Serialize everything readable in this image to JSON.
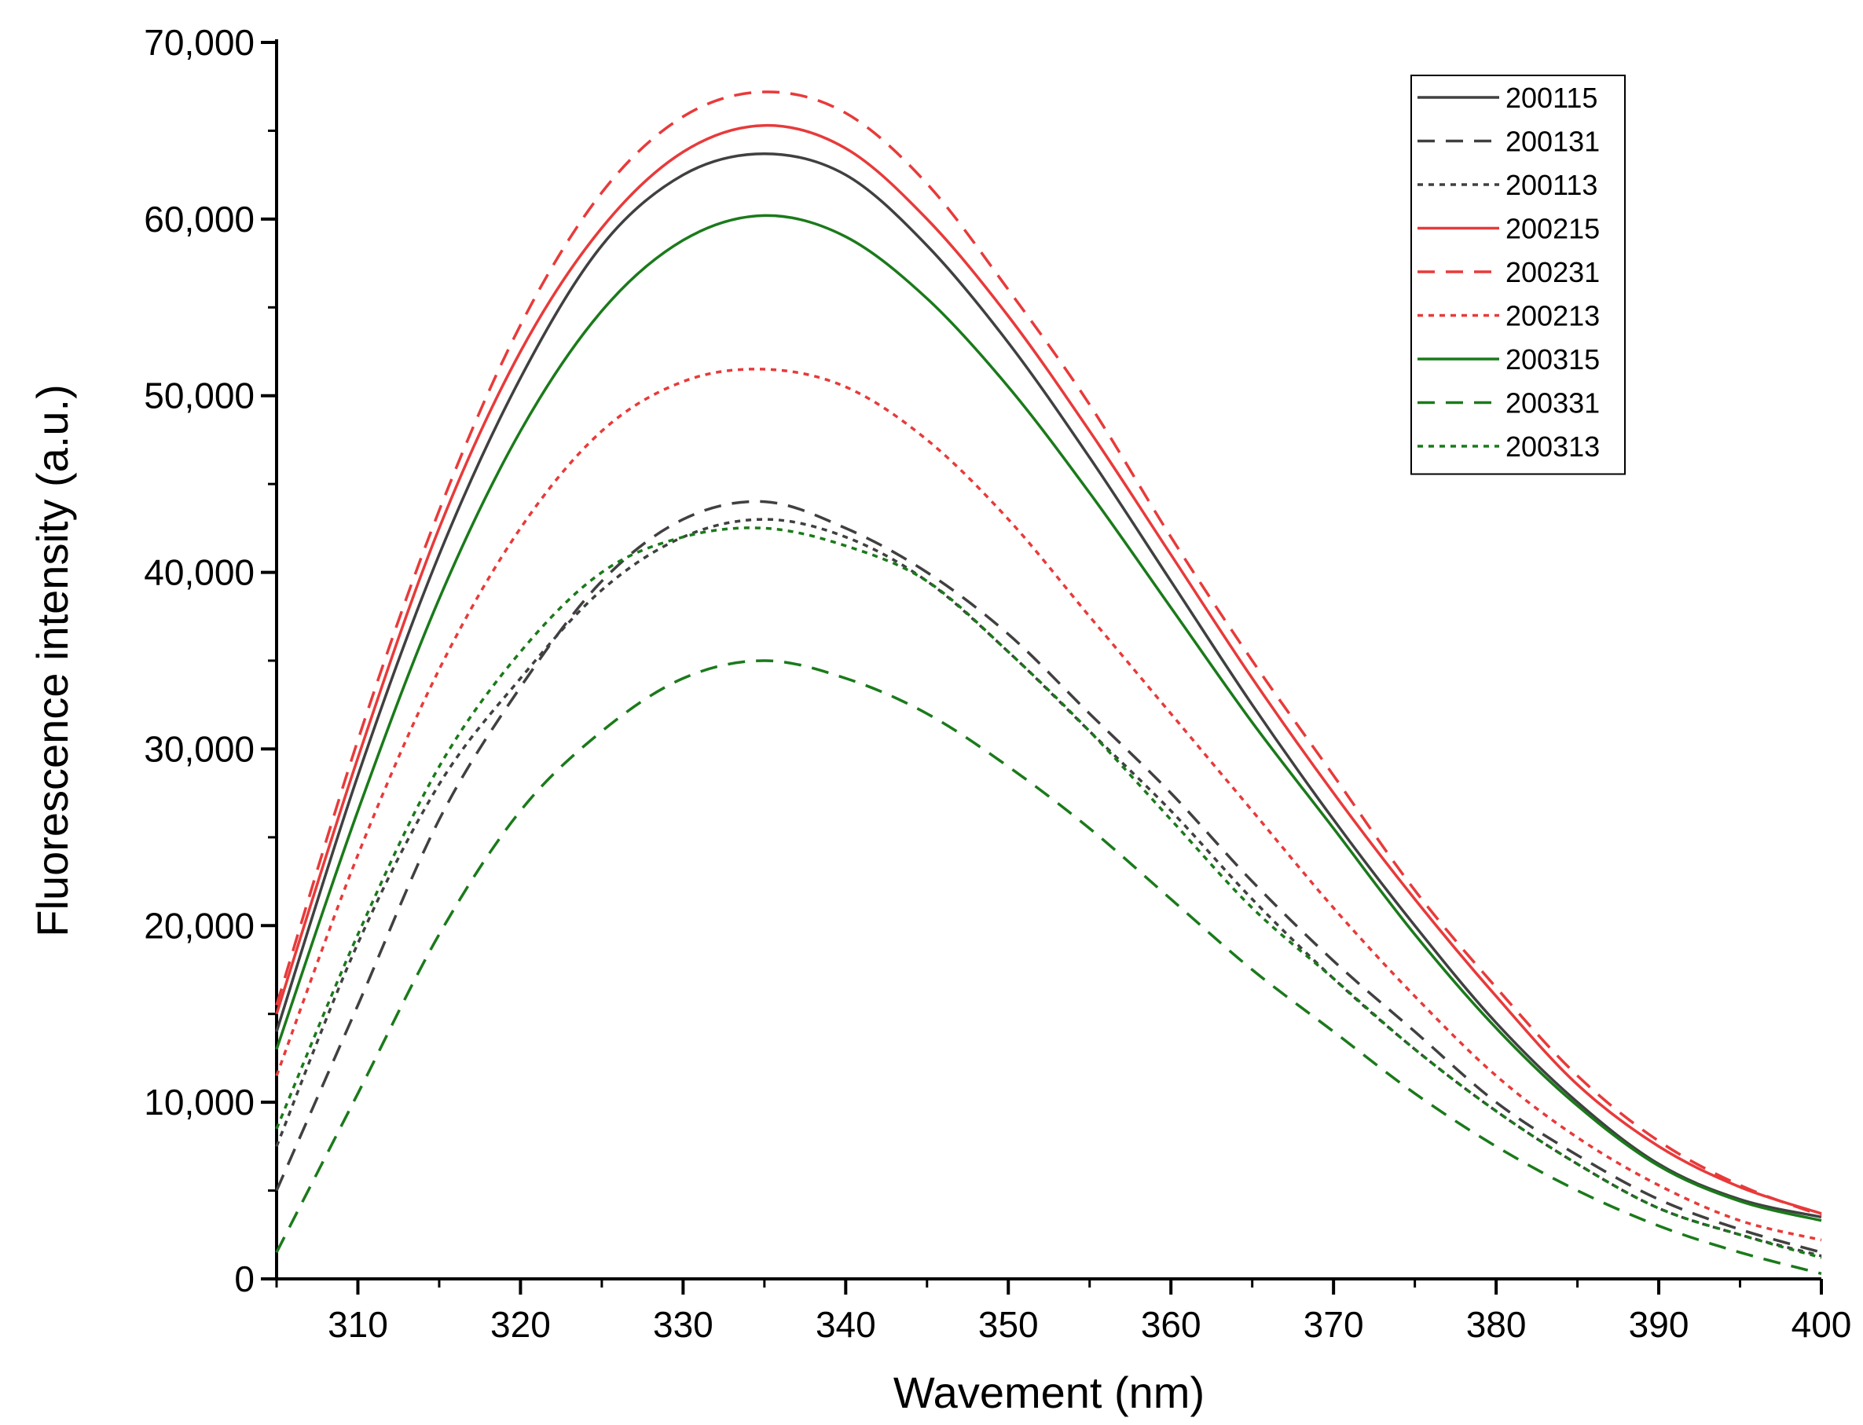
{
  "chart_data": {
    "type": "line",
    "title": "",
    "xlabel": "Wavement (nm)",
    "ylabel": "Fluorescence intensity (a.u.)",
    "xlim": [
      305,
      400
    ],
    "ylim": [
      0,
      70000
    ],
    "xticks": [
      310,
      320,
      330,
      340,
      350,
      360,
      370,
      380,
      390,
      400
    ],
    "xtick_labels": [
      "310",
      "320",
      "330",
      "340",
      "350",
      "360",
      "370",
      "380",
      "390",
      "400"
    ],
    "yticks": [
      0,
      10000,
      20000,
      30000,
      40000,
      50000,
      60000,
      70000
    ],
    "ytick_labels": [
      "0",
      "10,000",
      "20,000",
      "30,000",
      "40,000",
      "50,000",
      "60,000",
      "70,000"
    ],
    "grid": false,
    "legend_position": "top-right",
    "x": [
      305,
      310,
      315,
      320,
      325,
      330,
      335,
      340,
      345,
      350,
      355,
      360,
      365,
      370,
      375,
      380,
      385,
      390,
      395,
      400
    ],
    "series": [
      {
        "name": "200115",
        "color": "#404040",
        "dash": "solid",
        "values": [
          14000,
          28500,
          41000,
          51000,
          58500,
          62500,
          63700,
          62500,
          58500,
          53000,
          46500,
          39500,
          32500,
          26000,
          20000,
          14500,
          10000,
          6500,
          4500,
          3500
        ]
      },
      {
        "name": "200131",
        "color": "#404040",
        "dash": "dashed",
        "values": [
          5000,
          15500,
          26000,
          33500,
          39500,
          43000,
          44000,
          42500,
          40000,
          36500,
          32000,
          27500,
          22500,
          18000,
          14000,
          10000,
          7000,
          4500,
          2800,
          1500
        ]
      },
      {
        "name": "200113",
        "color": "#404040",
        "dash": "dotted",
        "values": [
          7500,
          19000,
          28000,
          34000,
          39000,
          42000,
          43000,
          42000,
          39500,
          35500,
          31000,
          26500,
          21500,
          17000,
          13000,
          9500,
          6500,
          4000,
          2500,
          1300
        ]
      },
      {
        "name": "200215",
        "color": "#e83a3a",
        "dash": "solid",
        "values": [
          15000,
          29500,
          42500,
          52500,
          59500,
          63800,
          65300,
          64000,
          60000,
          54500,
          48000,
          41000,
          34000,
          27500,
          21500,
          16000,
          11000,
          7500,
          5200,
          3700
        ]
      },
      {
        "name": "200231",
        "color": "#e83a3a",
        "dash": "dashed",
        "values": [
          15500,
          30500,
          43500,
          54000,
          61500,
          65800,
          67200,
          66000,
          62000,
          56000,
          49500,
          42000,
          35000,
          28500,
          22000,
          16500,
          11500,
          7800,
          5300,
          3600
        ]
      },
      {
        "name": "200213",
        "color": "#e83a3a",
        "dash": "dotted",
        "values": [
          11500,
          24000,
          34500,
          42500,
          48000,
          50800,
          51500,
          50500,
          47500,
          43000,
          37500,
          32000,
          26500,
          21000,
          16000,
          11500,
          8000,
          5300,
          3300,
          2200
        ]
      },
      {
        "name": "200315",
        "color": "#1a7a1a",
        "dash": "solid",
        "values": [
          13000,
          26500,
          38500,
          48000,
          54800,
          58800,
          60200,
          59000,
          55500,
          50500,
          44500,
          38000,
          31500,
          25500,
          19500,
          14200,
          9800,
          6400,
          4400,
          3300
        ]
      },
      {
        "name": "200331",
        "color": "#1a7a1a",
        "dash": "dashed",
        "values": [
          1500,
          10500,
          19500,
          26500,
          31000,
          34000,
          35000,
          34000,
          32000,
          29000,
          25500,
          21500,
          17500,
          14000,
          10500,
          7500,
          5000,
          3000,
          1500,
          300
        ]
      },
      {
        "name": "200313",
        "color": "#1a7a1a",
        "dash": "dotted",
        "values": [
          8500,
          19500,
          29000,
          35500,
          40000,
          42000,
          42500,
          41500,
          39500,
          35500,
          31000,
          26000,
          21000,
          17000,
          13000,
          9500,
          6500,
          4000,
          2500,
          1200
        ]
      }
    ]
  }
}
